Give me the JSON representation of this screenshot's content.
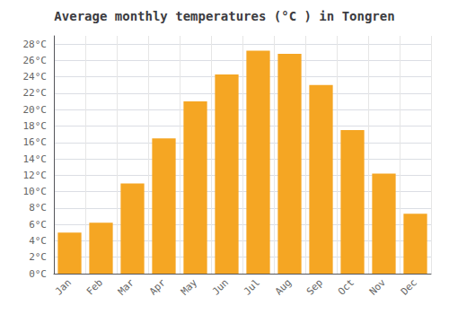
{
  "chart_data": {
    "type": "bar",
    "title": "Average monthly temperatures (°C ) in Tongren",
    "categories": [
      "Jan",
      "Feb",
      "Mar",
      "Apr",
      "May",
      "Jun",
      "Jul",
      "Aug",
      "Sep",
      "Oct",
      "Nov",
      "Dec"
    ],
    "values": [
      5,
      6.2,
      11,
      16.5,
      21,
      24.3,
      27.2,
      26.8,
      23,
      17.5,
      12.2,
      7.3
    ],
    "color": "#F5A623",
    "ylim": [
      0,
      29
    ],
    "yticks": [
      {
        "value": 0,
        "label": "0°C"
      },
      {
        "value": 2,
        "label": "2°C"
      },
      {
        "value": 4,
        "label": "4°C"
      },
      {
        "value": 6,
        "label": "6°C"
      },
      {
        "value": 8,
        "label": "8°C"
      },
      {
        "value": 10,
        "label": "10°C"
      },
      {
        "value": 12,
        "label": "12°C"
      },
      {
        "value": 14,
        "label": "14°C"
      },
      {
        "value": 16,
        "label": "16°C"
      },
      {
        "value": 18,
        "label": "18°C"
      },
      {
        "value": 20,
        "label": "20°C"
      },
      {
        "value": 22,
        "label": "22°C"
      },
      {
        "value": 24,
        "label": "24°C"
      },
      {
        "value": 26,
        "label": "26°C"
      },
      {
        "value": 28,
        "label": "28°C"
      }
    ],
    "grid": true
  }
}
